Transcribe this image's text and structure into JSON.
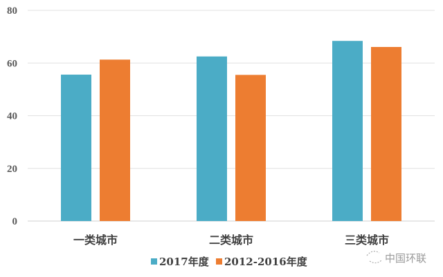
{
  "chart_data": {
    "type": "bar",
    "title": "",
    "xlabel": "",
    "ylabel": "",
    "categories": [
      "一类城市",
      "二类城市",
      "三类城市"
    ],
    "series": [
      {
        "name": "2017年度",
        "values": [
          55.6,
          62.5,
          68.4
        ],
        "color": "#4bacc6"
      },
      {
        "name": "2012-2016年度",
        "values": [
          61.3,
          55.5,
          66.1
        ],
        "color": "#ed7d31"
      }
    ],
    "ylim": [
      0,
      80
    ],
    "yticks": [
      0,
      20,
      40,
      60,
      80
    ],
    "grid": true,
    "legend_position": "bottom"
  },
  "watermark": "中国环联"
}
